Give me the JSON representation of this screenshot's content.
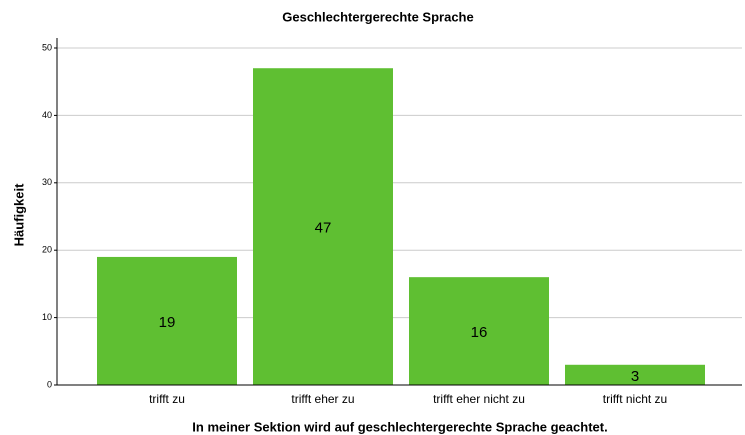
{
  "chart_data": {
    "type": "bar",
    "title": "Geschlechtergerechte Sprache",
    "x_label": "In meiner Sektion wird auf geschlechtergerechte Sprache geachtet.",
    "y_label": "Häufigkeit",
    "categories": [
      "trifft zu",
      "trifft eher zu",
      "trifft eher nicht zu",
      "trifft nicht zu"
    ],
    "values": [
      19,
      47,
      16,
      3
    ],
    "color": "#5fbf32",
    "ylim": [
      0,
      50
    ],
    "yticks": [
      0,
      10,
      20,
      30,
      40,
      50
    ],
    "grid": true
  }
}
